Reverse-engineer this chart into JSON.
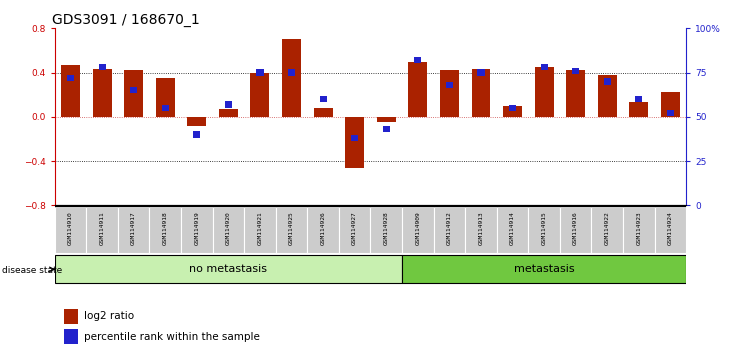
{
  "title": "GDS3091 / 168670_1",
  "samples": [
    "GSM114910",
    "GSM114911",
    "GSM114917",
    "GSM114918",
    "GSM114919",
    "GSM114920",
    "GSM114921",
    "GSM114925",
    "GSM114926",
    "GSM114927",
    "GSM114928",
    "GSM114909",
    "GSM114912",
    "GSM114913",
    "GSM114914",
    "GSM114915",
    "GSM114916",
    "GSM114922",
    "GSM114923",
    "GSM114924"
  ],
  "log2_ratio": [
    0.47,
    0.43,
    0.42,
    0.35,
    -0.08,
    0.07,
    0.4,
    0.7,
    0.08,
    -0.46,
    -0.05,
    0.5,
    0.42,
    0.43,
    0.1,
    0.45,
    0.42,
    0.38,
    0.13,
    0.22
  ],
  "percentile_rank": [
    72,
    78,
    65,
    55,
    40,
    57,
    75,
    75,
    60,
    38,
    43,
    82,
    68,
    75,
    55,
    78,
    76,
    70,
    60,
    52
  ],
  "group_labels": [
    "no metastasis",
    "metastasis"
  ],
  "group_sizes": [
    11,
    9
  ],
  "group_colors": [
    "#c8f0b0",
    "#70c840"
  ],
  "bar_color": "#aa2200",
  "blue_color": "#2222cc",
  "bg_color": "#ffffff",
  "plot_bg": "#ffffff",
  "ylim_left": [
    -0.8,
    0.8
  ],
  "ylim_right": [
    0,
    100
  ],
  "yticks_left": [
    -0.8,
    -0.4,
    0.0,
    0.4,
    0.8
  ],
  "yticks_right": [
    0,
    25,
    50,
    75,
    100
  ],
  "ytick_labels_right": [
    "0",
    "25",
    "50",
    "75",
    "100%"
  ],
  "dotted_hlines": [
    -0.4,
    0.4
  ],
  "zero_hline": 0.0,
  "title_fontsize": 10,
  "tick_fontsize": 6.5,
  "label_fontsize": 7.5
}
